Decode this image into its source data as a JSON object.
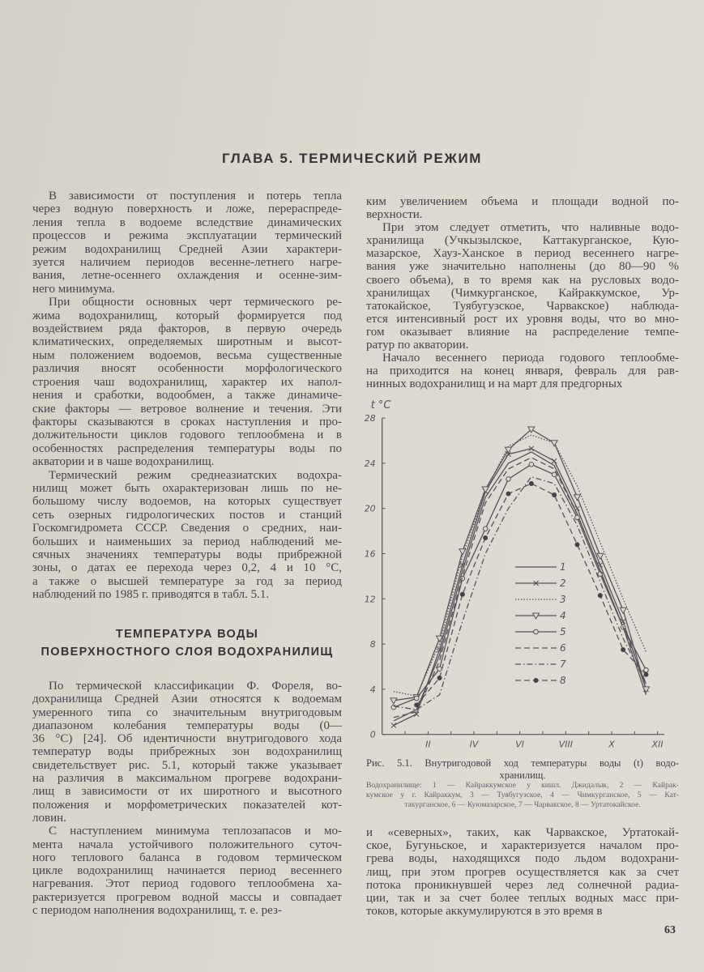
{
  "chapter_title": "ГЛАВА 5. ТЕРМИЧЕСКИЙ РЕЖИМ",
  "left_column": {
    "paragraphs_before": [
      [
        "В зависимости от поступления и потерь тепла",
        "через водную поверхность и ложе, перераспреде-",
        "ления тепла в водоеме вследствие динамических",
        "процессов и режима эксплуатации термический",
        "режим водохранилищ Средней Азии характери-",
        "зуется наличием периодов весенне-летнего нагре-",
        "вания, летне-осеннего охлаждения и осенне-зим-",
        "него минимума."
      ],
      [
        "При общности основных черт термического ре-",
        "жима водохранилищ, который формируется под",
        "воздействием ряда факторов, в первую очередь",
        "климатических, определяемых широтным и высот-",
        "ным положением водоемов, весьма существенные",
        "различия вносят особенности морфологического",
        "строения чаш водохранилищ, характер их напол-",
        "нения и сработки, водообмен, а также динамиче-",
        "ские факторы — ветровое волнение и течения. Эти",
        "факторы сказываются в сроках наступления и про-",
        "должительности циклов годового теплообмена и в",
        "особенностях распределения температуры воды по",
        "акватории и в чаше водохранилищ."
      ],
      [
        "Термический режим среднеазиатских водохра-",
        "нилищ может быть охарактеризован лишь по не-",
        "большому числу водоемов, на которых существует",
        "сеть озерных гидрологических постов и станций",
        "Госкомгидромета СССР. Сведения о средних, наи-",
        "больших и наименьших за период наблюдений ме-",
        "сячных значениях температуры воды прибрежной",
        "зоны, о датах ее перехода через 0,2, 4 и 10 °C,",
        "а также о высшей температуре за год за период",
        "наблюдений по 1985 г. приводятся в табл. 5.1."
      ]
    ],
    "section_heading": [
      "ТЕМПЕРАТУРА ВОДЫ",
      "ПОВЕРХНОСТНОГО СЛОЯ ВОДОХРАНИЛИЩ"
    ],
    "paragraphs_after": [
      [
        "По термической классификации Ф. Фореля, во-",
        "дохранилища Средней Азии относятся к водоемам",
        "умеренного типа со значительным внутригодовым",
        "диапазоном колебания температуры воды (0—",
        "36 °C) [24]. Об идентичности внутригодового хода",
        "температур воды прибрежных зон водохранилищ",
        "свидетельствует рис. 5.1, который также указывает",
        "на различия в максимальном прогреве водохрани-",
        "лищ в зависимости от их широтного и высотного",
        "положения и морфометрических показателей кот-",
        "ловин."
      ],
      [
        "С наступлением минимума теплозапасов и мо-",
        "мента начала устойчивого положительного суточ-",
        "ного теплового баланса в годовом термическом",
        "цикле водохранилищ начинается период весеннего",
        "нагревания. Этот период годового теплообмена ха-",
        "рактеризуется прогревом водной массы и совпадает",
        "с периодом наполнения водохранилищ, т. е. рез-"
      ]
    ]
  },
  "right_column": {
    "paragraphs_top": [
      [
        "ким увеличением объема и площади водной по-",
        "верхности."
      ],
      [
        "При этом следует отметить, что наливные водо-",
        "хранилища (Учкызылское, Каттакурганское, Кую-",
        "мазарское, Хауз-Ханское в период весеннего нагре-",
        "вания уже значительно наполнены (до 80—90 %",
        "своего объема), в то время как на русловых водо-",
        "хранилищах (Чимкурганское, Кайраккумское, Ур-",
        "татокайское, Туябугузское, Чарвакское) наблюда-",
        "ется интенсивный рост их уровня воды, что во мно-",
        "гом оказывает влияние на распределение темпе-",
        "ратур по акватории."
      ],
      [
        "Начало весеннего периода годового теплообме-",
        "на приходится на конец января, февраль для рав-",
        "нинных водохранилищ и на март для предгорных"
      ]
    ],
    "figure": {
      "caption": [
        "Рис. 5.1. Внутригодовой ход температуры воды (t) водо-",
        "хранилищ."
      ],
      "legend_note": [
        "Водохранилище: 1 — Кайраккумское у кишл. Джидалык, 2 — Кайрак-",
        "кумское у г. Кайраккум, 3 — Туябугузское, 4 — Чимкурганское, 5 — Кат-",
        "такурганское, 6 — Куюмазарское, 7 — Чарвакское, 8 — Уртатокайское."
      ]
    },
    "paragraphs_bottom": [
      [
        "и «северных», таких, как Чарвакское, Уртатокай-",
        "ское, Бугуньское, и характеризуется началом про-",
        "грева воды, находящихся подо льдом водохрани-",
        "лищ, при этом прогрев осуществляется как за счет",
        "потока проникнувшей через лед солнечной радиа-",
        "ции, так и за счет более теплых водных масс при-",
        "токов, которые аккумулируются в это время в"
      ]
    ]
  },
  "page_number": "63",
  "chart_data": {
    "type": "line",
    "title": "",
    "ylabel": "t °C",
    "xlabel": "",
    "ylim": [
      0,
      28
    ],
    "y_ticks": [
      "0",
      "4",
      "8",
      "12",
      "16",
      "20",
      "24",
      "28"
    ],
    "x_tick_labels": [
      "II",
      "IV",
      "VI",
      "VIII",
      "X",
      "XII"
    ],
    "x_months": [
      1,
      2,
      3,
      4,
      5,
      6,
      7,
      8,
      9,
      10,
      11,
      12
    ],
    "grid": false,
    "legend_position": "center-right",
    "series": [
      {
        "name": "1",
        "style": "solid",
        "marker": "none",
        "values": [
          1.2,
          2.2,
          7.0,
          14.5,
          21.0,
          24.0,
          25.0,
          23.8,
          19.5,
          14.5,
          9.5,
          3.5
        ]
      },
      {
        "name": "2",
        "style": "solid",
        "marker": "cross",
        "values": [
          0.8,
          1.8,
          7.5,
          15.0,
          21.5,
          24.8,
          25.3,
          24.2,
          20.0,
          15.0,
          10.0,
          4.0
        ]
      },
      {
        "name": "3",
        "style": "dotted",
        "marker": "none",
        "values": [
          3.8,
          3.4,
          8.0,
          15.8,
          21.5,
          25.5,
          26.5,
          25.8,
          22.0,
          17.0,
          12.0,
          7.3
        ]
      },
      {
        "name": "4",
        "style": "solid",
        "marker": "triangle",
        "values": [
          3.0,
          3.3,
          8.5,
          16.2,
          21.7,
          25.2,
          27.0,
          25.8,
          21.0,
          15.8,
          11.0,
          4.0
        ]
      },
      {
        "name": "5",
        "style": "solid",
        "marker": "circle-open",
        "values": [
          2.4,
          3.2,
          5.8,
          13.8,
          18.2,
          22.6,
          23.9,
          23.0,
          19.2,
          14.2,
          9.5,
          5.7
        ]
      },
      {
        "name": "6",
        "style": "dashed",
        "marker": "none",
        "values": [
          1.5,
          2.0,
          6.5,
          14.0,
          20.5,
          23.5,
          24.5,
          23.5,
          19.5,
          14.5,
          9.5,
          4.5
        ]
      },
      {
        "name": "7",
        "style": "dash-dot",
        "marker": "none",
        "values": [
          2.5,
          2.2,
          3.5,
          10.0,
          16.0,
          20.0,
          22.8,
          22.2,
          18.5,
          13.5,
          8.5,
          4.5
        ]
      },
      {
        "name": "8",
        "style": "dashed",
        "marker": "circle-filled",
        "values": [
          null,
          2.6,
          5.0,
          12.4,
          17.4,
          21.3,
          22.2,
          21.2,
          16.8,
          12.3,
          7.5,
          5.3
        ]
      }
    ]
  }
}
